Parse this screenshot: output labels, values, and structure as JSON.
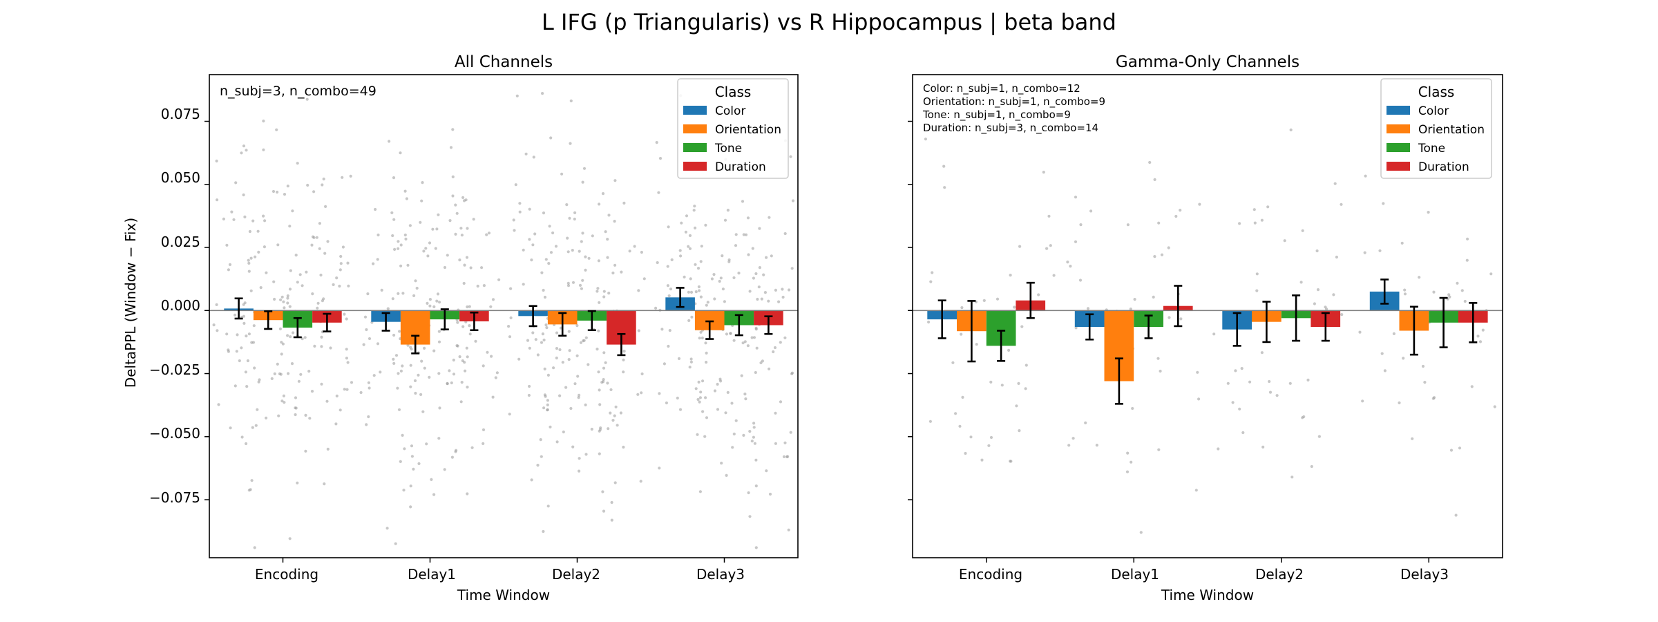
{
  "figure": {
    "suptitle": "L IFG (p Triangularis) vs R Hippocampus  |  beta band"
  },
  "legend": {
    "title": "Class",
    "entries": [
      {
        "name": "Color",
        "color": "#1f77b4"
      },
      {
        "name": "Orientation",
        "color": "#ff7f0e"
      },
      {
        "name": "Tone",
        "color": "#2ca02c"
      },
      {
        "name": "Duration",
        "color": "#d62728"
      }
    ]
  },
  "chart_data": [
    {
      "type": "bar",
      "title": "All Channels",
      "xlabel": "Time Window",
      "ylabel": "DeltaPPL (Window − Fix)",
      "ylim": [
        -0.098,
        0.0935
      ],
      "yticks": [
        -0.075,
        -0.05,
        -0.025,
        0.0,
        0.025,
        0.05,
        0.075
      ],
      "ytick_labels": [
        "−0.075",
        "−0.050",
        "−0.025",
        "0.000",
        "0.025",
        "0.050",
        "0.075"
      ],
      "categories": [
        "Encoding",
        "Delay1",
        "Delay2",
        "Delay3"
      ],
      "annotations": [
        "n_subj=3, n_combo=49"
      ],
      "legend_position": "top-right",
      "series": [
        {
          "name": "Color",
          "values": [
            0.0008,
            -0.0045,
            -0.0022,
            0.0052
          ],
          "errors": [
            0.004,
            0.0035,
            0.004,
            0.0038
          ]
        },
        {
          "name": "Orientation",
          "values": [
            -0.0038,
            -0.0135,
            -0.0055,
            -0.0078
          ],
          "errors": [
            0.0035,
            0.0035,
            0.0045,
            0.0035
          ]
        },
        {
          "name": "Tone",
          "values": [
            -0.0068,
            -0.0035,
            -0.004,
            -0.0058
          ],
          "errors": [
            0.0038,
            0.004,
            0.0038,
            0.004
          ]
        },
        {
          "name": "Duration",
          "values": [
            -0.0048,
            -0.0043,
            -0.0135,
            -0.0058
          ],
          "errors": [
            0.0035,
            0.0035,
            0.0042,
            0.0035
          ]
        }
      ],
      "points_per_class": 49
    },
    {
      "type": "bar",
      "title": "Gamma-Only Channels",
      "xlabel": "Time Window",
      "ylabel": "",
      "ylim": [
        -0.098,
        0.0935
      ],
      "yticks": [
        -0.075,
        -0.05,
        -0.025,
        0.0,
        0.025,
        0.05,
        0.075
      ],
      "ytick_labels": [
        "",
        "",
        "",
        "",
        "",
        "",
        ""
      ],
      "categories": [
        "Encoding",
        "Delay1",
        "Delay2",
        "Delay3"
      ],
      "annotations": [
        "Color: n_subj=1, n_combo=12",
        "Orientation: n_subj=1, n_combo=9",
        "Tone: n_subj=1, n_combo=9",
        "Duration: n_subj=3, n_combo=14"
      ],
      "legend_position": "top-right",
      "series": [
        {
          "name": "Color",
          "values": [
            -0.0035,
            -0.0065,
            -0.0075,
            0.0075
          ],
          "errors": [
            0.0075,
            0.005,
            0.0065,
            0.0048
          ]
        },
        {
          "name": "Orientation",
          "values": [
            -0.0082,
            -0.028,
            -0.0045,
            -0.008
          ],
          "errors": [
            0.012,
            0.009,
            0.008,
            0.0095
          ]
        },
        {
          "name": "Tone",
          "values": [
            -0.014,
            -0.0065,
            -0.003,
            -0.0048
          ],
          "errors": [
            0.006,
            0.0045,
            0.009,
            0.0098
          ]
        },
        {
          "name": "Duration",
          "values": [
            0.004,
            0.0018,
            -0.0065,
            -0.0048
          ],
          "errors": [
            0.007,
            0.008,
            0.0055,
            0.0078
          ]
        }
      ],
      "points_per_class": [
        12,
        9,
        9,
        14
      ]
    }
  ]
}
